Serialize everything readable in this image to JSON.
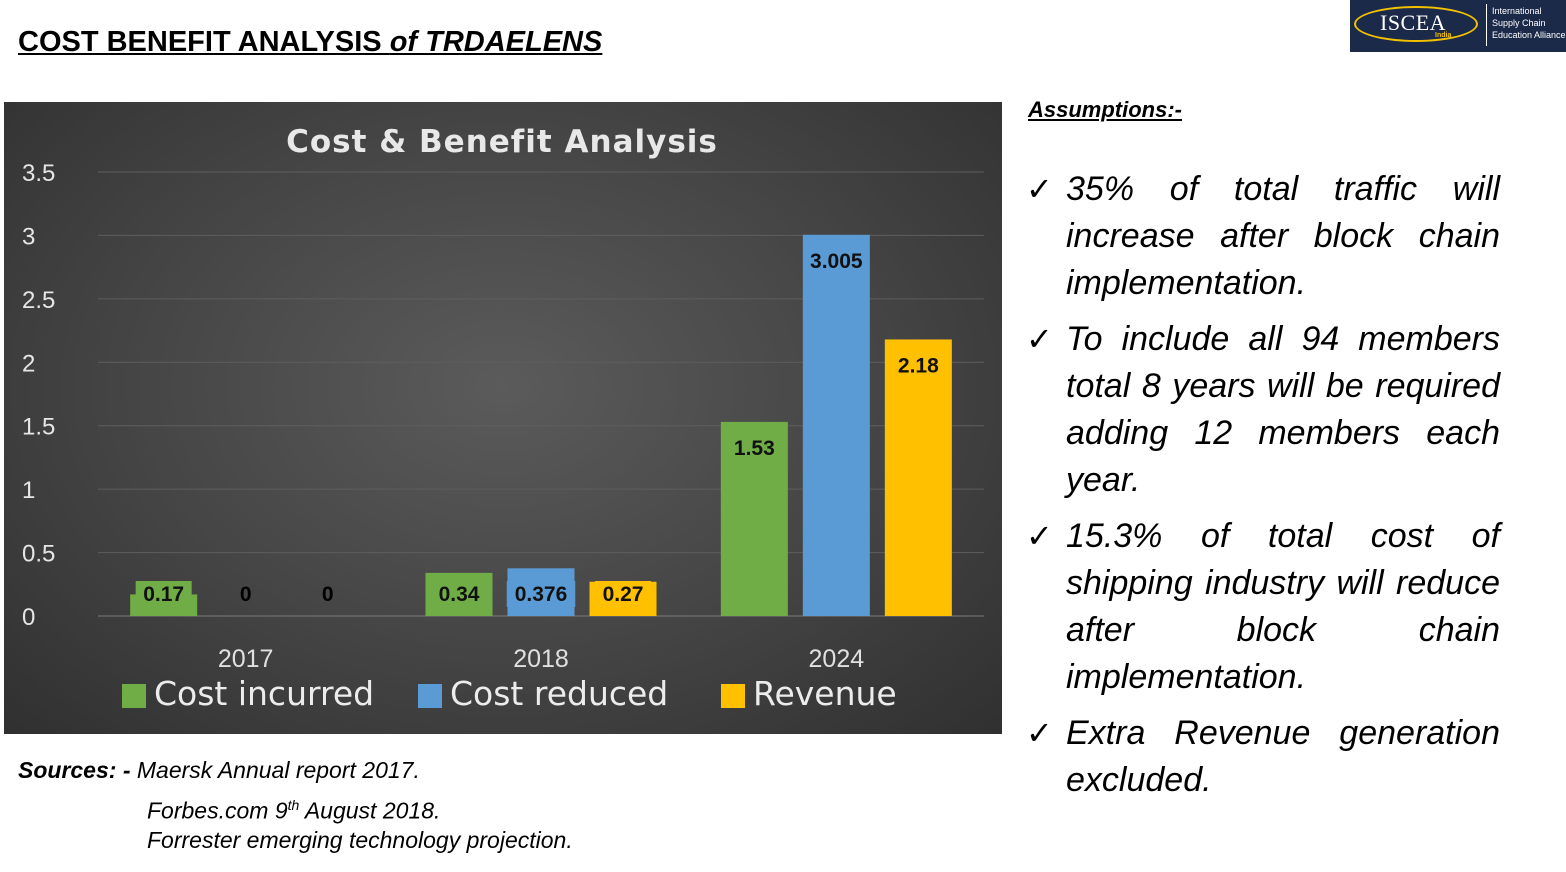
{
  "title": {
    "main": "COST BENEFIT ANALYSIS ",
    "italic": "of TRDAELENS"
  },
  "logo": {
    "name": "ISCEA",
    "region": "India",
    "tagline": [
      "International",
      "Supply Chain",
      "Education Alliance"
    ],
    "colors": {
      "background": "#1c2a4a",
      "accent": "#f2c200"
    }
  },
  "chart_data": {
    "type": "bar",
    "title": "Cost & Benefit Analysis",
    "categories": [
      "2017",
      "2018",
      "2024"
    ],
    "series": [
      {
        "name": "Cost incurred",
        "values": [
          0.17,
          0.34,
          1.53
        ],
        "labels": [
          "0.17",
          "0.34",
          "1.53"
        ],
        "color": "#70ad47"
      },
      {
        "name": "Cost reduced",
        "values": [
          0,
          0.376,
          3.005
        ],
        "labels": [
          "0",
          "0.376",
          "3.005"
        ],
        "color": "#5b9bd5"
      },
      {
        "name": "Revenue",
        "values": [
          0,
          0.27,
          2.18
        ],
        "labels": [
          "0",
          "0.27",
          "2.18"
        ],
        "color": "#ffc000"
      }
    ],
    "ylim": [
      0,
      3.5
    ],
    "yticks": [
      "0",
      "0.5",
      "1",
      "1.5",
      "2",
      "2.5",
      "3",
      "3.5"
    ],
    "grid": true,
    "legend": "bottom",
    "xlabel": "",
    "ylabel": ""
  },
  "assumptions": {
    "heading": "Assumptions:-",
    "items": [
      "35% of total traffic will increase after block chain implementation.",
      "To include all 94 members total 8 years will be required adding 12 members each year.",
      "15.3% of total cost of shipping industry will reduce after block chain implementation.",
      "Extra Revenue generation excluded."
    ]
  },
  "sources": {
    "label": "Sources: - ",
    "lines": [
      {
        "text": "Maersk Annual report 2017."
      },
      {
        "text": "Forbes.com 9",
        "sup": "th",
        "rest": " August 2018."
      },
      {
        "text": "Forrester emerging technology projection."
      }
    ]
  }
}
